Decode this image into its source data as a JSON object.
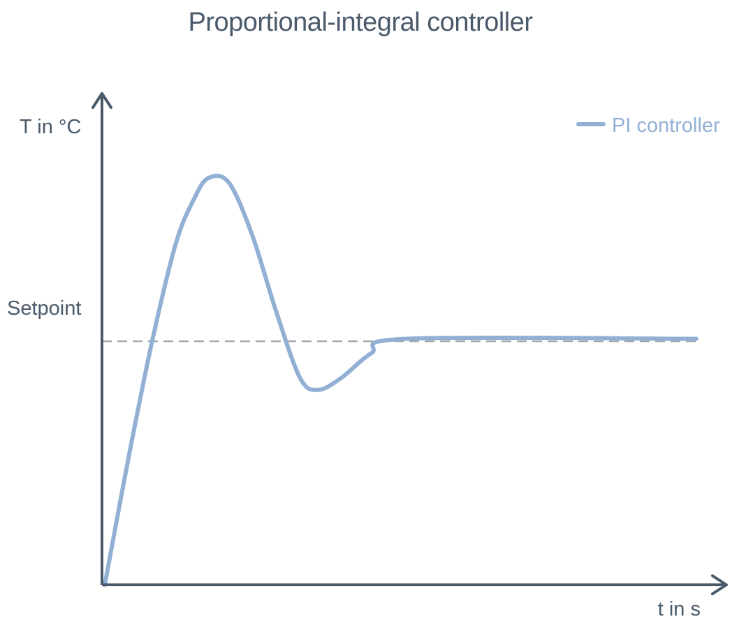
{
  "chart_data": {
    "type": "line",
    "title": "Proportional-integral controller",
    "xlabel": "t in s",
    "ylabel": "T in °C",
    "y_tick_labels": [
      {
        "label": "Setpoint",
        "value": 1.0
      }
    ],
    "xlim": [
      0,
      1
    ],
    "ylim": [
      0,
      2
    ],
    "grid": false,
    "legend_position": "top-right",
    "setpoint": 1.0,
    "series": [
      {
        "name": "PI controller",
        "color": "#92b0d4",
        "x": [
          0,
          0.04,
          0.08,
          0.12,
          0.15,
          0.175,
          0.21,
          0.25,
          0.29,
          0.33,
          0.36,
          0.4,
          0.45,
          0.51,
          1.0
        ],
        "y": [
          0,
          0.52,
          1.0,
          1.4,
          1.58,
          1.67,
          1.65,
          1.43,
          1.12,
          0.85,
          0.8,
          0.85,
          0.95,
          1.01,
          1.01
        ]
      }
    ]
  },
  "colors": {
    "axis": "#4a5a6a",
    "setpoint_line": "#a3a8ae",
    "series": "#92b0d4",
    "text": "#4a5a6a"
  }
}
